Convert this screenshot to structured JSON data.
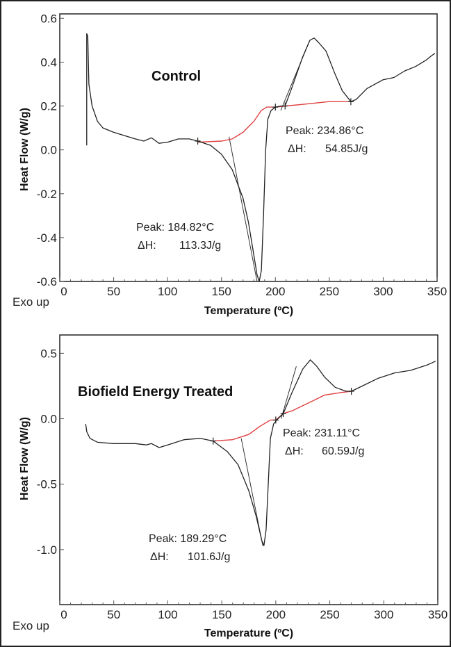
{
  "chart_data": [
    {
      "type": "line",
      "title": "Control",
      "xlabel": "Temperature (ºC)",
      "ylabel": "Heat Flow (W/g)",
      "corner_label": "Exo up",
      "xlim": [
        0,
        350
      ],
      "ylim": [
        -0.6,
        0.62
      ],
      "xticks": [
        "0",
        "50",
        "100",
        "150",
        "200",
        "250",
        "300",
        "350"
      ],
      "yticks": [
        "0.6",
        "0.4",
        "0.2",
        "0.0",
        "-0.2",
        "-0.4",
        "-0.6"
      ],
      "ytick_values": [
        0.6,
        0.4,
        0.2,
        0.0,
        -0.2,
        -0.4,
        -0.6
      ],
      "grid": false,
      "colors": {
        "curve": "#222222",
        "baseline": "#e04040"
      },
      "curve": [
        [
          25,
          0.02
        ],
        [
          25,
          0.53
        ],
        [
          26,
          0.52
        ],
        [
          27,
          0.3
        ],
        [
          30,
          0.2
        ],
        [
          35,
          0.13
        ],
        [
          40,
          0.1
        ],
        [
          50,
          0.08
        ],
        [
          60,
          0.065
        ],
        [
          70,
          0.05
        ],
        [
          78,
          0.04
        ],
        [
          85,
          0.055
        ],
        [
          88,
          0.045
        ],
        [
          92,
          0.03
        ],
        [
          100,
          0.035
        ],
        [
          110,
          0.05
        ],
        [
          120,
          0.05
        ],
        [
          128,
          0.04
        ],
        [
          140,
          0.02
        ],
        [
          150,
          -0.02
        ],
        [
          160,
          -0.09
        ],
        [
          170,
          -0.22
        ],
        [
          175,
          -0.33
        ],
        [
          180,
          -0.48
        ],
        [
          183,
          -0.57
        ],
        [
          185,
          -0.6
        ],
        [
          187,
          -0.55
        ],
        [
          189,
          -0.3
        ],
        [
          191,
          0.0
        ],
        [
          193,
          0.14
        ],
        [
          196,
          0.18
        ],
        [
          200,
          0.195
        ],
        [
          205,
          0.2
        ],
        [
          209,
          0.2
        ],
        [
          215,
          0.28
        ],
        [
          225,
          0.42
        ],
        [
          232,
          0.5
        ],
        [
          236,
          0.51
        ],
        [
          240,
          0.49
        ],
        [
          247,
          0.45
        ],
        [
          255,
          0.35
        ],
        [
          262,
          0.27
        ],
        [
          270,
          0.22
        ],
        [
          275,
          0.23
        ],
        [
          285,
          0.28
        ],
        [
          300,
          0.32
        ],
        [
          310,
          0.33
        ],
        [
          320,
          0.36
        ],
        [
          330,
          0.38
        ],
        [
          340,
          0.41
        ],
        [
          345,
          0.43
        ],
        [
          348,
          0.44
        ]
      ],
      "baseline": [
        [
          128,
          0.035
        ],
        [
          150,
          0.04
        ],
        [
          160,
          0.05
        ],
        [
          170,
          0.08
        ],
        [
          180,
          0.13
        ],
        [
          187,
          0.18
        ],
        [
          192,
          0.195
        ],
        [
          200,
          0.195
        ],
        [
          210,
          0.2
        ],
        [
          230,
          0.21
        ],
        [
          250,
          0.22
        ],
        [
          270,
          0.22
        ]
      ],
      "tangents": [
        [
          [
            157,
            0.06
          ],
          [
            183,
            -0.6
          ]
        ],
        [
          [
            205,
            0.18
          ],
          [
            232,
            0.5
          ]
        ]
      ],
      "markers": [
        [
          128,
          0.04
        ],
        [
          200,
          0.195
        ],
        [
          209,
          0.2
        ],
        [
          270,
          0.22
        ]
      ],
      "annotations": [
        {
          "peak": "Peak: 184.82°C",
          "dh_label": "ΔH:",
          "dh": "113.3J/g"
        },
        {
          "peak": "Peak: 234.86°C",
          "dh_label": "ΔH:",
          "dh": "54.85J/g"
        }
      ]
    },
    {
      "type": "line",
      "title": "Biofield Energy Treated",
      "xlabel": "Temperature (ºC)",
      "ylabel": "Heat Flow (W/g)",
      "corner_label": "Exo up",
      "xlim": [
        0,
        350
      ],
      "ylim": [
        -1.42,
        0.64
      ],
      "xticks": [
        "0",
        "50",
        "100",
        "150",
        "200",
        "250",
        "300",
        "350"
      ],
      "yticks": [
        "0.5",
        "0.0",
        "-0.5",
        "-1.0"
      ],
      "ytick_values": [
        0.5,
        0.0,
        -0.5,
        -1.0
      ],
      "grid": false,
      "colors": {
        "curve": "#222222",
        "baseline": "#e04040"
      },
      "curve": [
        [
          24,
          -0.04
        ],
        [
          25,
          -0.1
        ],
        [
          28,
          -0.15
        ],
        [
          35,
          -0.18
        ],
        [
          50,
          -0.19
        ],
        [
          70,
          -0.19
        ],
        [
          80,
          -0.2
        ],
        [
          85,
          -0.19
        ],
        [
          92,
          -0.22
        ],
        [
          100,
          -0.2
        ],
        [
          115,
          -0.16
        ],
        [
          130,
          -0.15
        ],
        [
          142,
          -0.17
        ],
        [
          155,
          -0.25
        ],
        [
          165,
          -0.35
        ],
        [
          175,
          -0.55
        ],
        [
          182,
          -0.75
        ],
        [
          187,
          -0.93
        ],
        [
          189,
          -0.97
        ],
        [
          191,
          -0.85
        ],
        [
          193,
          -0.5
        ],
        [
          195,
          -0.15
        ],
        [
          198,
          -0.04
        ],
        [
          202,
          0.0
        ],
        [
          207,
          0.04
        ],
        [
          215,
          0.2
        ],
        [
          225,
          0.38
        ],
        [
          232,
          0.45
        ],
        [
          238,
          0.4
        ],
        [
          245,
          0.32
        ],
        [
          255,
          0.24
        ],
        [
          265,
          0.21
        ],
        [
          270,
          0.21
        ],
        [
          280,
          0.25
        ],
        [
          295,
          0.31
        ],
        [
          310,
          0.35
        ],
        [
          325,
          0.37
        ],
        [
          340,
          0.41
        ],
        [
          348,
          0.44
        ]
      ],
      "baseline": [
        [
          142,
          -0.17
        ],
        [
          160,
          -0.16
        ],
        [
          175,
          -0.12
        ],
        [
          185,
          -0.06
        ],
        [
          195,
          -0.01
        ],
        [
          200,
          -0.01
        ],
        [
          207,
          0.04
        ],
        [
          215,
          0.06
        ],
        [
          225,
          0.1
        ],
        [
          235,
          0.14
        ],
        [
          245,
          0.18
        ],
        [
          260,
          0.2
        ],
        [
          270,
          0.21
        ]
      ],
      "tangents": [
        [
          [
            168,
            -0.15
          ],
          [
            188,
            -0.97
          ]
        ],
        [
          [
            205,
            0.0
          ],
          [
            219,
            0.4
          ]
        ]
      ],
      "markers": [
        [
          142,
          -0.17
        ],
        [
          200,
          -0.01
        ],
        [
          207,
          0.04
        ],
        [
          270,
          0.21
        ]
      ],
      "annotations": [
        {
          "peak": "Peak: 189.29°C",
          "dh_label": "ΔH:",
          "dh": "101.6J/g"
        },
        {
          "peak": "Peak: 231.11°C",
          "dh_label": "ΔH:",
          "dh": "60.59J/g"
        }
      ]
    }
  ]
}
